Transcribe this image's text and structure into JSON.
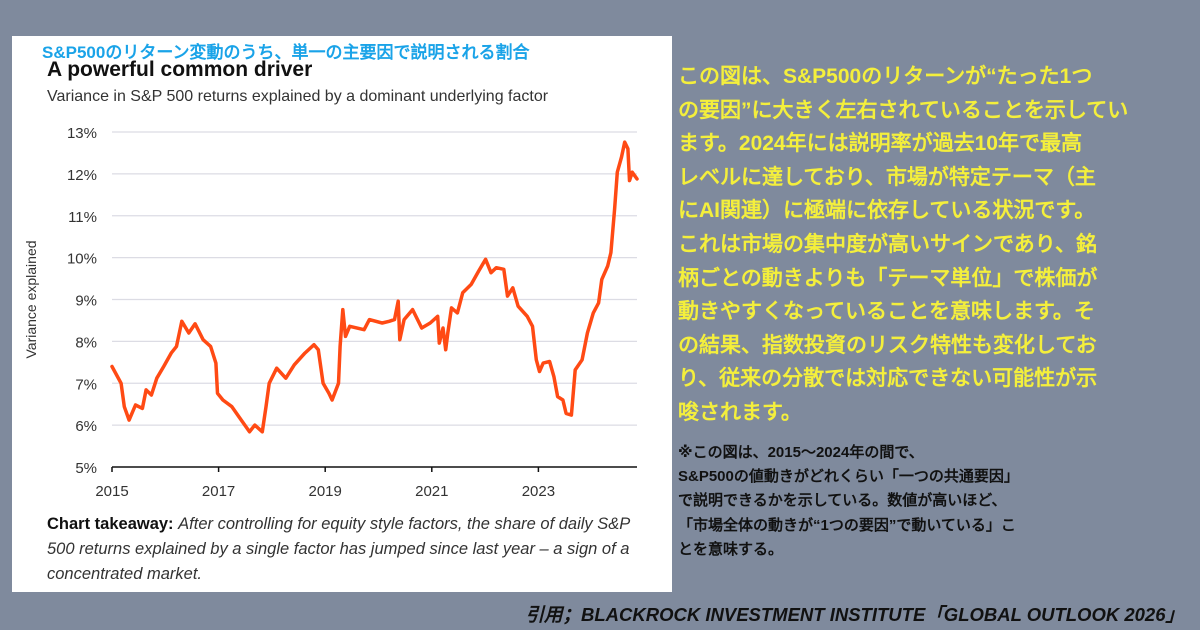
{
  "chart_data": {
    "type": "line",
    "jp_title": "S&P500のリターン変動のうち、単一の主要因で説明される割合",
    "title": "A powerful common driver",
    "subtitle": "Variance in S&P 500 returns explained by a dominant underlying factor",
    "xlabel": "",
    "ylabel": "Variance explained",
    "xlim": [
      2015,
      2024.85
    ],
    "ylim": [
      5,
      13
    ],
    "grid": true,
    "x_ticks": [
      2015,
      2017,
      2019,
      2021,
      2023
    ],
    "x_tick_labels": [
      "2015",
      "2017",
      "2019",
      "2021",
      "2023"
    ],
    "y_ticks": [
      5,
      6,
      7,
      8,
      9,
      10,
      11,
      12,
      13
    ],
    "y_tick_labels": [
      "5%",
      "6%",
      "7%",
      "8%",
      "9%",
      "10%",
      "11%",
      "12%",
      "13%"
    ],
    "series": [
      {
        "name": "Variance explained",
        "color": "#ff4a14",
        "points": [
          [
            2015.0,
            7.4
          ],
          [
            2015.17,
            7.0
          ],
          [
            2015.23,
            6.44
          ],
          [
            2015.32,
            6.12
          ],
          [
            2015.44,
            6.48
          ],
          [
            2015.57,
            6.4
          ],
          [
            2015.64,
            6.84
          ],
          [
            2015.74,
            6.72
          ],
          [
            2015.84,
            7.12
          ],
          [
            2015.97,
            7.4
          ],
          [
            2016.11,
            7.72
          ],
          [
            2016.21,
            7.88
          ],
          [
            2016.31,
            8.48
          ],
          [
            2016.44,
            8.2
          ],
          [
            2016.56,
            8.42
          ],
          [
            2016.71,
            8.04
          ],
          [
            2016.85,
            7.88
          ],
          [
            2016.95,
            7.48
          ],
          [
            2016.98,
            6.76
          ],
          [
            2017.08,
            6.6
          ],
          [
            2017.25,
            6.44
          ],
          [
            2017.38,
            6.2
          ],
          [
            2017.58,
            5.84
          ],
          [
            2017.68,
            6.0
          ],
          [
            2017.82,
            5.84
          ],
          [
            2017.89,
            6.44
          ],
          [
            2017.95,
            7.0
          ],
          [
            2018.09,
            7.36
          ],
          [
            2018.26,
            7.12
          ],
          [
            2018.42,
            7.44
          ],
          [
            2018.62,
            7.72
          ],
          [
            2018.79,
            7.92
          ],
          [
            2018.87,
            7.8
          ],
          [
            2018.96,
            7.0
          ],
          [
            2019.07,
            6.76
          ],
          [
            2019.13,
            6.6
          ],
          [
            2019.25,
            7.0
          ],
          [
            2019.28,
            7.88
          ],
          [
            2019.33,
            8.76
          ],
          [
            2019.38,
            8.12
          ],
          [
            2019.46,
            8.36
          ],
          [
            2019.73,
            8.28
          ],
          [
            2019.83,
            8.52
          ],
          [
            2020.07,
            8.44
          ],
          [
            2020.2,
            8.48
          ],
          [
            2020.3,
            8.52
          ],
          [
            2020.37,
            8.96
          ],
          [
            2020.4,
            8.04
          ],
          [
            2020.48,
            8.52
          ],
          [
            2020.64,
            8.76
          ],
          [
            2020.81,
            8.32
          ],
          [
            2020.97,
            8.44
          ],
          [
            2021.11,
            8.6
          ],
          [
            2021.14,
            7.96
          ],
          [
            2021.21,
            8.32
          ],
          [
            2021.26,
            7.8
          ],
          [
            2021.3,
            8.2
          ],
          [
            2021.37,
            8.8
          ],
          [
            2021.48,
            8.68
          ],
          [
            2021.58,
            9.16
          ],
          [
            2021.74,
            9.36
          ],
          [
            2021.88,
            9.68
          ],
          [
            2022.01,
            9.96
          ],
          [
            2022.11,
            9.64
          ],
          [
            2022.21,
            9.76
          ],
          [
            2022.35,
            9.72
          ],
          [
            2022.42,
            9.08
          ],
          [
            2022.52,
            9.28
          ],
          [
            2022.62,
            8.84
          ],
          [
            2022.79,
            8.6
          ],
          [
            2022.89,
            8.36
          ],
          [
            2022.96,
            7.56
          ],
          [
            2023.02,
            7.28
          ],
          [
            2023.09,
            7.48
          ],
          [
            2023.21,
            7.52
          ],
          [
            2023.29,
            7.16
          ],
          [
            2023.36,
            6.68
          ],
          [
            2023.46,
            6.6
          ],
          [
            2023.52,
            6.28
          ],
          [
            2023.62,
            6.24
          ],
          [
            2023.69,
            7.32
          ],
          [
            2023.82,
            7.56
          ],
          [
            2023.92,
            8.2
          ],
          [
            2024.03,
            8.68
          ],
          [
            2024.13,
            8.92
          ],
          [
            2024.19,
            9.48
          ],
          [
            2024.3,
            9.8
          ],
          [
            2024.36,
            10.12
          ],
          [
            2024.43,
            11.16
          ],
          [
            2024.48,
            12.04
          ],
          [
            2024.56,
            12.4
          ],
          [
            2024.62,
            12.76
          ],
          [
            2024.68,
            12.6
          ],
          [
            2024.71,
            11.84
          ],
          [
            2024.76,
            12.04
          ],
          [
            2024.85,
            11.88
          ]
        ]
      }
    ],
    "takeaway_label": "Chart takeaway:",
    "takeaway_text": "After controlling for equity style factors, the share of daily S&P 500 returns explained by a single factor has jumped since last year – a sign of a concentrated market."
  },
  "commentary": {
    "lines": [
      "この図は、S&P500のリターンが“たった1つ",
      "の要因”に大きく左右されていることを示してい",
      "ます。2024年には説明率が過去10年で最高",
      "レベルに達しており、市場が特定テーマ（主",
      "にAI関連）に極端に依存している状況です。",
      "これは市場の集中度が高いサインであり、銘",
      "柄ごとの動きよりも「テーマ単位」で株価が",
      "動きやすくなっていることを意味します。そ",
      "の結果、指数投資のリスク特性も変化してお",
      "り、従来の分散では対応できない可能性が示",
      "唆されます。"
    ],
    "color": "#f4ef3c"
  },
  "note": {
    "lines": [
      "※この図は、2015～2024年の間で、",
      " S&P500の値動きがどれくらい「一つの共通要因」",
      "で説明できるかを示している。数値が高いほど、",
      " 「市場全体の動きが“1つの要因”で動いている」こ",
      "とを意味する。"
    ]
  },
  "citation": "引用；BLACKROCK INVESTMENT INSTITUTE「GLOBAL OUTLOOK 2026」"
}
